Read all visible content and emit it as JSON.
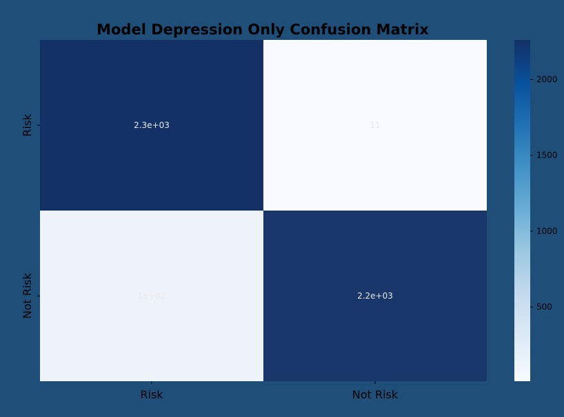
{
  "chart_data": {
    "type": "heatmap",
    "title": "Model Depression Only Confusion Matrix",
    "x_categories": [
      "Risk",
      "Not Risk"
    ],
    "y_categories": [
      "Risk",
      "Not Risk"
    ],
    "cells": [
      {
        "row": 0,
        "col": 0,
        "value": 2300,
        "label": "2.3e+03"
      },
      {
        "row": 0,
        "col": 1,
        "value": 11,
        "label": "11"
      },
      {
        "row": 1,
        "col": 0,
        "value": 100,
        "label": "1e+02"
      },
      {
        "row": 1,
        "col": 1,
        "value": 2200,
        "label": "2.2e+03"
      }
    ],
    "colormap": "Blues",
    "colorbar": {
      "range": [
        11,
        2260
      ],
      "ticks": [
        500,
        1000,
        1500,
        2000
      ],
      "tick_labels": [
        "500",
        "1000",
        "1500",
        "2000"
      ]
    },
    "colors": {
      "background": "#1f4e79",
      "low": "#f7fbff",
      "high": "#133166"
    }
  }
}
